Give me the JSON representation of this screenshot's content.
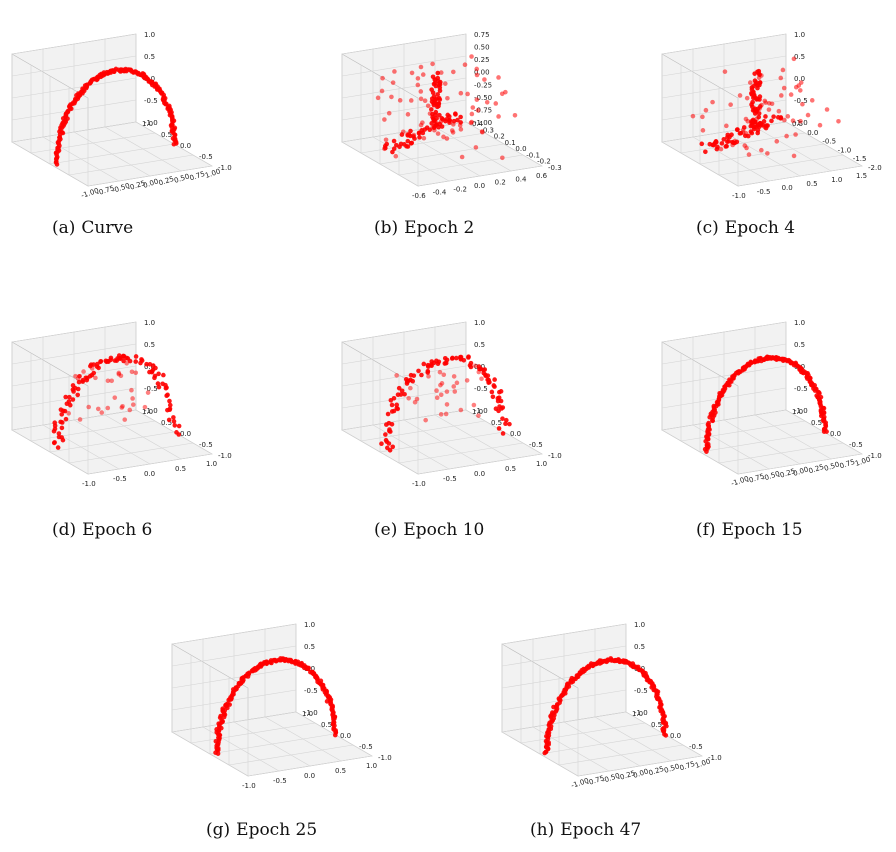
{
  "colors": {
    "points": "#ff0000",
    "pane": "#f2f2f2",
    "grid": "#d4d4d4",
    "axis": "#444444"
  },
  "panels": [
    {
      "tag": "(a)",
      "label": "Curve",
      "chart_data": {
        "type": "scatter3d",
        "shape": "arc",
        "x_ticks": [
          "-1.00",
          "-0.75",
          "-0.50",
          "-0.25",
          "0.00",
          "0.25",
          "0.50",
          "0.75",
          "1.00"
        ],
        "y_ticks": [
          "-1.0",
          "-0.5",
          "0.0",
          "0.5",
          "1.0"
        ],
        "z_ticks": [
          "1.0",
          "0.5",
          "0.0",
          "-0.5",
          "-1.0"
        ]
      }
    },
    {
      "tag": "(b)",
      "label": "Epoch 2",
      "chart_data": {
        "type": "scatter3d",
        "shape": "scatter",
        "x_ticks": [
          "-0.6",
          "-0.4",
          "-0.2",
          "0.0",
          "0.2",
          "0.4",
          "0.6"
        ],
        "y_ticks": [
          "-0.3",
          "-0.2",
          "-0.1",
          "0.0",
          "0.1",
          "0.2",
          "0.3",
          "0.4"
        ],
        "z_ticks": [
          "0.75",
          "0.50",
          "0.25",
          "0.00",
          "-0.25",
          "-0.50",
          "-0.75",
          "-1.00"
        ]
      }
    },
    {
      "tag": "(c)",
      "label": "Epoch 4",
      "chart_data": {
        "type": "scatter3d",
        "shape": "scatter",
        "x_ticks": [
          "-1.0",
          "-0.5",
          "0.0",
          "0.5",
          "1.0",
          "1.5"
        ],
        "y_ticks": [
          "-2.0",
          "-1.5",
          "-1.0",
          "-0.5",
          "0.0",
          "0.5"
        ],
        "z_ticks": [
          "1.0",
          "0.5",
          "0.0",
          "-0.5",
          "-1.0"
        ]
      }
    },
    {
      "tag": "(d)",
      "label": "Epoch 6",
      "chart_data": {
        "type": "scatter3d",
        "shape": "broken-arc",
        "x_ticks": [
          "-1.0",
          "-0.5",
          "0.0",
          "0.5",
          "1.0"
        ],
        "y_ticks": [
          "-1.0",
          "-0.5",
          "0.0",
          "0.5",
          "1.0"
        ],
        "z_ticks": [
          "1.0",
          "0.5",
          "0.0",
          "-0.5",
          "-1.0"
        ]
      }
    },
    {
      "tag": "(e)",
      "label": "Epoch 10",
      "chart_data": {
        "type": "scatter3d",
        "shape": "broken-arc",
        "x_ticks": [
          "-1.0",
          "-0.5",
          "0.0",
          "0.5",
          "1.0"
        ],
        "y_ticks": [
          "-1.0",
          "-0.5",
          "0.0",
          "0.5",
          "1.0"
        ],
        "z_ticks": [
          "1.0",
          "0.5",
          "0.0",
          "-0.5",
          "-1.0"
        ]
      }
    },
    {
      "tag": "(f)",
      "label": "Epoch 15",
      "chart_data": {
        "type": "scatter3d",
        "shape": "arc",
        "x_ticks": [
          "-1.00",
          "-0.75",
          "-0.50",
          "-0.25",
          "0.00",
          "0.25",
          "0.50",
          "0.75",
          "1.00"
        ],
        "y_ticks": [
          "-1.0",
          "-0.5",
          "0.0",
          "0.5",
          "1.0"
        ],
        "z_ticks": [
          "1.0",
          "0.5",
          "0.0",
          "-0.5",
          "-1.0"
        ]
      }
    },
    {
      "tag": "(g)",
      "label": "Epoch 25",
      "chart_data": {
        "type": "scatter3d",
        "shape": "arc",
        "x_ticks": [
          "-1.0",
          "-0.5",
          "0.0",
          "0.5",
          "1.0"
        ],
        "y_ticks": [
          "-1.0",
          "-0.5",
          "0.0",
          "0.5",
          "1.0"
        ],
        "z_ticks": [
          "1.0",
          "0.5",
          "0.0",
          "-0.5",
          "-1.0"
        ]
      }
    },
    {
      "tag": "(h)",
      "label": "Epoch 47",
      "chart_data": {
        "type": "scatter3d",
        "shape": "arc",
        "x_ticks": [
          "-1.00",
          "-0.75",
          "-0.50",
          "-0.25",
          "0.00",
          "0.25",
          "0.50",
          "0.75",
          "1.00"
        ],
        "y_ticks": [
          "-1.0",
          "-0.5",
          "0.0",
          "0.5",
          "1.0"
        ],
        "z_ticks": [
          "1.0",
          "0.5",
          "0.0",
          "-0.5",
          "-1.0"
        ]
      }
    }
  ]
}
